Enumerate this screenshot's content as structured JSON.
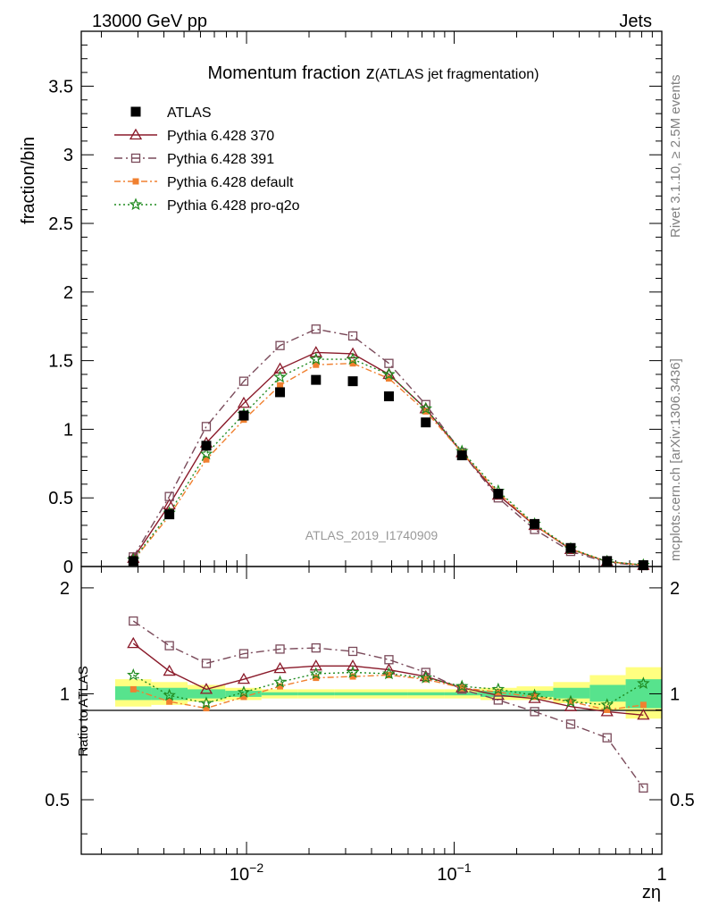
{
  "header": {
    "left": "13000 GeV pp",
    "right": "Jets"
  },
  "side_labels": {
    "rivet": "Rivet 3.1.10, ≥ 2.5M events",
    "mcplots": "mcplots.cern.ch [arXiv:1306.3436]"
  },
  "chart_data": {
    "type": "scatter",
    "title": "Momentum fraction",
    "title_symbol": "z",
    "title_suffix": "(ATLAS jet fragmentation)",
    "watermark": "ATLAS_2019_I1740909",
    "xlabel": "zη",
    "ylabel": "fraction/bin",
    "ratio_ylabel": "Ratio to ATLAS",
    "x_scale": "log",
    "xlim": [
      0.0016,
      1.0
    ],
    "ylim": [
      0,
      3.9
    ],
    "ratio_ylim": [
      0.35,
      2.3
    ],
    "x_tick_labels": [
      {
        "value": 0.01,
        "base": "10",
        "exp": "−2"
      },
      {
        "value": 0.1,
        "base": "10",
        "exp": "−1"
      },
      {
        "value": 1,
        "base": "1",
        "exp": ""
      }
    ],
    "y_tick_labels": [
      "0",
      "0.5",
      "1",
      "1.5",
      "2",
      "2.5",
      "3",
      "3.5"
    ],
    "ratio_tick_labels": [
      "0.5",
      "1",
      "2"
    ],
    "legend_position": "top-left",
    "x": [
      0.00285,
      0.00425,
      0.0064,
      0.0097,
      0.0145,
      0.0216,
      0.0325,
      0.0485,
      0.073,
      0.109,
      0.163,
      0.244,
      0.364,
      0.545,
      0.815
    ],
    "series": [
      {
        "name": "ATLAS",
        "kind": "data",
        "marker": "filled-square",
        "color": "#000000",
        "values": [
          0.04,
          0.38,
          0.88,
          1.1,
          1.27,
          1.36,
          1.35,
          1.24,
          1.05,
          0.81,
          0.53,
          0.31,
          0.135,
          0.04,
          0.01
        ]
      },
      {
        "name": "Pythia 6.428 370",
        "marker": "open-triangle",
        "color": "#8a1a2a",
        "dash": "",
        "values": [
          0.06,
          0.45,
          0.9,
          1.19,
          1.44,
          1.56,
          1.55,
          1.4,
          1.15,
          0.83,
          0.52,
          0.3,
          0.125,
          0.036,
          0.009
        ]
      },
      {
        "name": "Pythia 6.428 391",
        "marker": "open-square",
        "color": "#7a4a5a",
        "dash": "9,4,2,4",
        "values": [
          0.07,
          0.51,
          1.02,
          1.35,
          1.61,
          1.73,
          1.68,
          1.48,
          1.18,
          0.83,
          0.5,
          0.27,
          0.11,
          0.03,
          0.006
        ]
      },
      {
        "name": "Pythia 6.428 default",
        "marker": "filled-small-square",
        "color": "#f08030",
        "dash": "7,3,2,3",
        "values": [
          0.045,
          0.37,
          0.78,
          1.07,
          1.32,
          1.47,
          1.48,
          1.37,
          1.13,
          0.83,
          0.54,
          0.3,
          0.128,
          0.036,
          0.009
        ]
      },
      {
        "name": "Pythia 6.428 pro-q2o",
        "marker": "open-star",
        "color": "#1f8a1f",
        "dash": "2,3",
        "values": [
          0.05,
          0.39,
          0.82,
          1.11,
          1.38,
          1.51,
          1.51,
          1.4,
          1.15,
          0.84,
          0.55,
          0.31,
          0.13,
          0.037,
          0.011
        ]
      }
    ],
    "ratios": [
      {
        "name": "Pythia 6.428 370",
        "values": [
          1.39,
          1.16,
          1.03,
          1.1,
          1.18,
          1.2,
          1.2,
          1.17,
          1.12,
          1.04,
          0.99,
          0.97,
          0.92,
          0.89,
          0.87
        ]
      },
      {
        "name": "Pythia 6.428 391",
        "values": [
          1.61,
          1.37,
          1.22,
          1.3,
          1.34,
          1.35,
          1.32,
          1.25,
          1.15,
          1.03,
          0.96,
          0.89,
          0.82,
          0.75,
          0.54
        ]
      },
      {
        "name": "Pythia 6.428 default",
        "values": [
          1.03,
          0.95,
          0.91,
          0.98,
          1.05,
          1.11,
          1.12,
          1.13,
          1.1,
          1.04,
          1.01,
          0.98,
          0.95,
          0.9,
          0.93
        ]
      },
      {
        "name": "Pythia 6.428 pro-q2o",
        "values": [
          1.13,
          0.99,
          0.94,
          1.01,
          1.08,
          1.14,
          1.15,
          1.14,
          1.11,
          1.05,
          1.03,
          0.99,
          0.95,
          0.93,
          1.07
        ]
      }
    ],
    "ratio_bands": {
      "edges": [
        0.00233,
        0.00348,
        0.0052,
        0.0079,
        0.0118,
        0.0177,
        0.0266,
        0.0398,
        0.0597,
        0.0893,
        0.134,
        0.2,
        0.3,
        0.45,
        0.67,
        1.0
      ],
      "inner": [
        [
          0.96,
          1.05
        ],
        [
          0.96,
          1.04
        ],
        [
          0.97,
          1.03
        ],
        [
          0.98,
          1.02
        ],
        [
          0.99,
          1.01
        ],
        [
          0.99,
          1.01
        ],
        [
          0.99,
          1.01
        ],
        [
          0.99,
          1.01
        ],
        [
          0.99,
          1.01
        ],
        [
          0.99,
          1.01
        ],
        [
          0.98,
          1.02
        ],
        [
          0.98,
          1.02
        ],
        [
          0.97,
          1.04
        ],
        [
          0.95,
          1.06
        ],
        [
          0.91,
          1.1
        ]
      ],
      "outer": [
        [
          0.92,
          1.1
        ],
        [
          0.93,
          1.08
        ],
        [
          0.95,
          1.06
        ],
        [
          0.96,
          1.04
        ],
        [
          0.97,
          1.03
        ],
        [
          0.97,
          1.03
        ],
        [
          0.97,
          1.03
        ],
        [
          0.97,
          1.03
        ],
        [
          0.97,
          1.03
        ],
        [
          0.97,
          1.03
        ],
        [
          0.96,
          1.04
        ],
        [
          0.96,
          1.05
        ],
        [
          0.94,
          1.08
        ],
        [
          0.9,
          1.13
        ],
        [
          0.85,
          1.19
        ]
      ]
    }
  },
  "colors": {
    "band_inner": "#57e38d",
    "band_outer": "#ffff80",
    "axis": "#000000",
    "side_text": "#808080",
    "watermark": "#999999"
  }
}
